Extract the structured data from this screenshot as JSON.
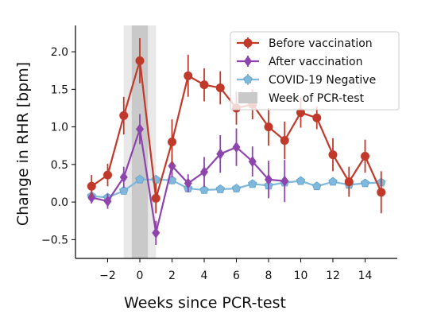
{
  "chart_data": {
    "type": "line",
    "xlabel": "Weeks since PCR-test",
    "ylabel": "Change in RHR [bpm]",
    "xlim": [
      -4.0,
      16.0
    ],
    "ylim": [
      -0.75,
      2.35
    ],
    "xticks": [
      -2,
      0,
      2,
      4,
      6,
      8,
      10,
      12,
      14
    ],
    "yticks": [
      -0.5,
      0.0,
      0.5,
      1.0,
      1.5,
      2.0
    ],
    "xtick_labels": [
      "−2",
      "0",
      "2",
      "4",
      "6",
      "8",
      "10",
      "12",
      "14"
    ],
    "ytick_labels": [
      "−0.5",
      "0.0",
      "0.5",
      "1.0",
      "1.5",
      "2.0"
    ],
    "highlight_bands": [
      {
        "x0": -1.0,
        "x1": 1.0,
        "color": "#e8e8e8"
      },
      {
        "x0": -0.5,
        "x1": 0.5,
        "color": "#c9c9c9"
      }
    ],
    "legend_position": "top-right",
    "series": [
      {
        "name": "Before vaccination",
        "color": "#c0392b",
        "marker": "circle",
        "x": [
          -3,
          -2,
          -1,
          0,
          1,
          2,
          3,
          4,
          5,
          6,
          7,
          8,
          9,
          10,
          11,
          12,
          13,
          14,
          15
        ],
        "y": [
          0.21,
          0.36,
          1.15,
          1.88,
          0.05,
          0.8,
          1.68,
          1.56,
          1.52,
          1.25,
          1.3,
          1.0,
          0.82,
          1.19,
          1.12,
          0.63,
          0.27,
          0.61,
          0.13
        ],
        "err": [
          0.15,
          0.15,
          0.25,
          0.3,
          0.2,
          0.3,
          0.28,
          0.22,
          0.22,
          0.22,
          0.2,
          0.25,
          0.25,
          0.2,
          0.15,
          0.22,
          0.2,
          0.22,
          0.28
        ]
      },
      {
        "name": "After vaccination",
        "color": "#8e44ad",
        "marker": "diamond",
        "x": [
          -3,
          -2,
          -1,
          0,
          1,
          2,
          3,
          4,
          5,
          6,
          7,
          8,
          9
        ],
        "y": [
          0.06,
          0.01,
          0.33,
          0.97,
          -0.41,
          0.48,
          0.25,
          0.4,
          0.64,
          0.73,
          0.54,
          0.3,
          0.28
        ],
        "err": [
          0.08,
          0.1,
          0.14,
          0.2,
          0.16,
          0.15,
          0.12,
          0.2,
          0.25,
          0.25,
          0.2,
          0.25,
          0.28
        ]
      },
      {
        "name": "COVID-19 Negative",
        "color": "#7fb8da",
        "marker": "pentagon",
        "x": [
          -3,
          -2,
          -1,
          0,
          1,
          2,
          3,
          4,
          5,
          6,
          7,
          8,
          9,
          10,
          11,
          12,
          13,
          14,
          15
        ],
        "y": [
          0.08,
          0.06,
          0.15,
          0.3,
          0.3,
          0.29,
          0.18,
          0.16,
          0.17,
          0.18,
          0.24,
          0.22,
          0.26,
          0.28,
          0.21,
          0.27,
          0.23,
          0.25,
          0.26
        ],
        "err": [
          0.03,
          0.03,
          0.03,
          0.03,
          0.03,
          0.03,
          0.03,
          0.03,
          0.03,
          0.03,
          0.03,
          0.03,
          0.03,
          0.03,
          0.03,
          0.03,
          0.03,
          0.03,
          0.03
        ]
      }
    ],
    "legend": [
      {
        "label": "Before vaccination",
        "color": "#c0392b",
        "marker": "circle"
      },
      {
        "label": "After vaccination",
        "color": "#8e44ad",
        "marker": "diamond"
      },
      {
        "label": "COVID-19 Negative",
        "color": "#7fb8da",
        "marker": "pentagon"
      },
      {
        "label": "Week of PCR-test",
        "color": "#c9c9c9",
        "marker": "patch"
      }
    ]
  }
}
